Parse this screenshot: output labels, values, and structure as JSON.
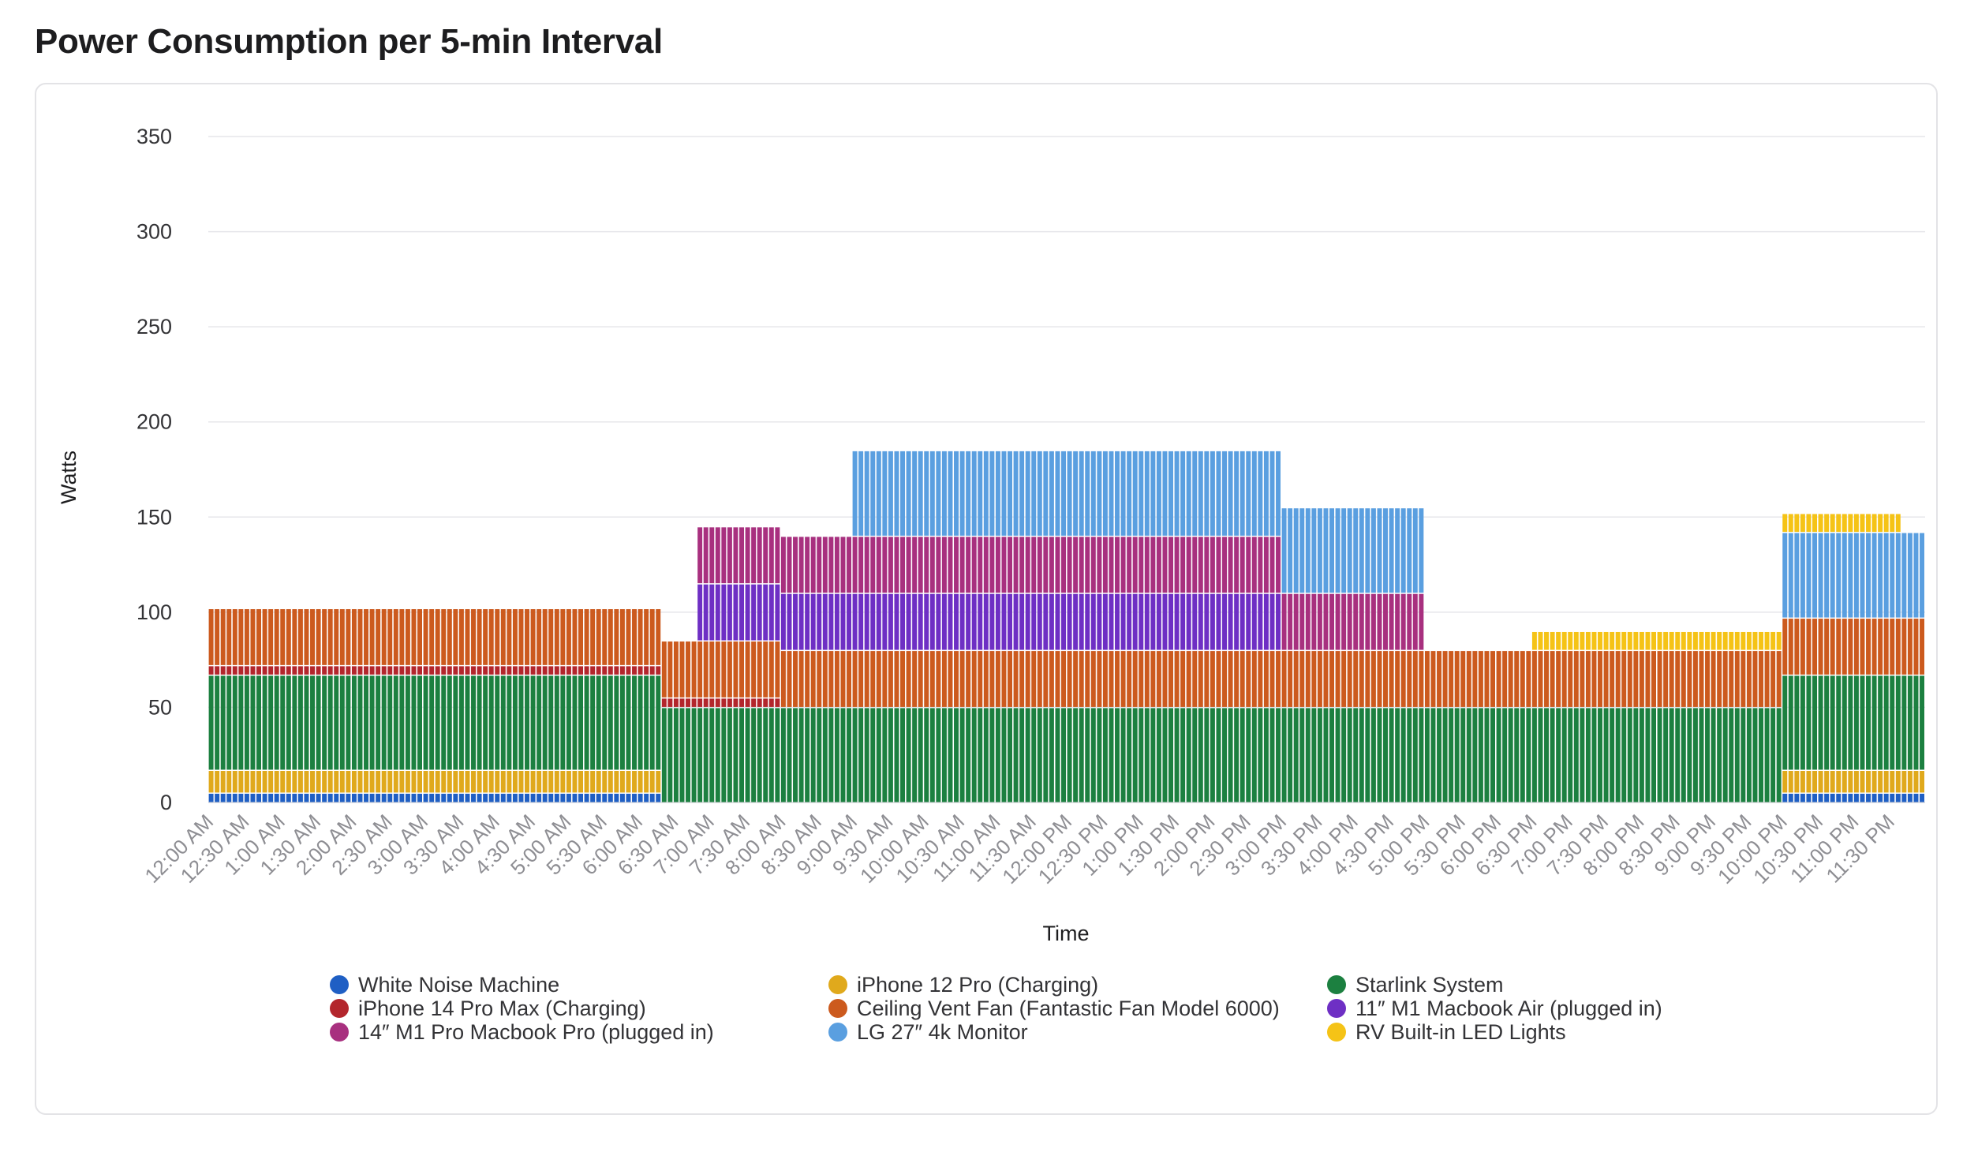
{
  "page": {
    "title": "Power Consumption per 5-min Interval"
  },
  "chart_data": {
    "type": "bar",
    "stacked": true,
    "title": "Power Consumption per 5-min Interval",
    "xlabel": "Time",
    "ylabel": "Watts",
    "ylim": [
      0,
      350
    ],
    "yticks": [
      0,
      50,
      100,
      150,
      200,
      250,
      300,
      350
    ],
    "grid": true,
    "legend_position": "bottom",
    "x_tick_labels": [
      "12:00 AM",
      "12:30 AM",
      "1:00 AM",
      "1:30 AM",
      "2:00 AM",
      "2:30 AM",
      "3:00 AM",
      "3:30 AM",
      "4:00 AM",
      "4:30 AM",
      "5:00 AM",
      "5:30 AM",
      "6:00 AM",
      "6:30 AM",
      "7:00 AM",
      "7:30 AM",
      "8:00 AM",
      "8:30 AM",
      "9:00 AM",
      "9:30 AM",
      "10:00 AM",
      "10:30 AM",
      "11:00 AM",
      "11:30 AM",
      "12:00 PM",
      "12:30 PM",
      "1:00 PM",
      "1:30 PM",
      "2:00 PM",
      "2:30 PM",
      "3:00 PM",
      "3:30 PM",
      "4:00 PM",
      "4:30 PM",
      "5:00 PM",
      "5:30 PM",
      "6:00 PM",
      "6:30 PM",
      "7:00 PM",
      "7:30 PM",
      "8:00 PM",
      "8:30 PM",
      "9:00 PM",
      "9:30 PM",
      "10:00 PM",
      "10:30 PM",
      "11:00 PM",
      "11:30 PM"
    ],
    "interval_minutes": 5,
    "intervals_per_day": 288,
    "series": [
      {
        "name": "White Noise Machine",
        "color": "#1f5fc4",
        "segments": [
          {
            "from": "12:00 AM",
            "to": "6:15 AM",
            "watts": 5
          },
          {
            "from": "10:00 PM",
            "to": "11:55 PM",
            "watts": 5
          }
        ]
      },
      {
        "name": "iPhone 12 Pro (Charging)",
        "color": "#e0a91c",
        "segments": [
          {
            "from": "12:00 AM",
            "to": "6:15 AM",
            "watts": 12
          },
          {
            "from": "10:00 PM",
            "to": "11:55 PM",
            "watts": 12
          }
        ]
      },
      {
        "name": "Starlink System",
        "color": "#1c8040",
        "segments": [
          {
            "from": "12:00 AM",
            "to": "6:15 AM",
            "watts": 50
          },
          {
            "from": "6:20 AM",
            "to": "9:55 PM",
            "watts": 50
          },
          {
            "from": "10:00 PM",
            "to": "11:55 PM",
            "watts": 50
          }
        ]
      },
      {
        "name": "iPhone 14 Pro Max (Charging)",
        "color": "#b3262c",
        "segments": [
          {
            "from": "12:00 AM",
            "to": "6:15 AM",
            "watts": 5
          },
          {
            "from": "6:20 AM",
            "to": "7:55 AM",
            "watts": 5
          }
        ]
      },
      {
        "name": "Ceiling Vent Fan (Fantastic Fan Model 6000)",
        "color": "#cc5a1e",
        "segments": [
          {
            "from": "12:00 AM",
            "to": "6:15 AM",
            "watts": 30
          },
          {
            "from": "6:20 AM",
            "to": "7:55 AM",
            "watts": 30
          },
          {
            "from": "8:00 AM",
            "to": "9:55 PM",
            "watts": 30
          },
          {
            "from": "10:00 PM",
            "to": "11:55 PM",
            "watts": 30
          }
        ]
      },
      {
        "name": "11″ M1 Macbook Air (plugged in)",
        "color": "#6e2fc4",
        "segments": [
          {
            "from": "6:50 AM",
            "to": "7:55 AM",
            "watts": 30
          },
          {
            "from": "8:00 AM",
            "to": "2:55 PM",
            "watts": 30
          }
        ]
      },
      {
        "name": "14″ M1 Pro Macbook Pro (plugged in)",
        "color": "#a8307f",
        "segments": [
          {
            "from": "6:50 AM",
            "to": "7:55 AM",
            "watts": 30
          },
          {
            "from": "8:00 AM",
            "to": "2:55 PM",
            "watts": 30
          },
          {
            "from": "3:00 PM",
            "to": "4:55 PM",
            "watts": 30
          }
        ]
      },
      {
        "name": "LG 27″ 4k Monitor",
        "color": "#5a9fe0",
        "segments": [
          {
            "from": "9:00 AM",
            "to": "2:55 PM",
            "watts": 45
          },
          {
            "from": "3:00 PM",
            "to": "4:55 PM",
            "watts": 45
          },
          {
            "from": "10:00 PM",
            "to": "11:55 PM",
            "watts": 45
          }
        ]
      },
      {
        "name": "RV Built-in LED Lights",
        "color": "#f5c316",
        "segments": [
          {
            "from": "6:30 PM",
            "to": "9:55 PM",
            "watts": 10
          },
          {
            "from": "10:00 PM",
            "to": "11:35 PM",
            "watts": 10
          }
        ]
      }
    ]
  }
}
